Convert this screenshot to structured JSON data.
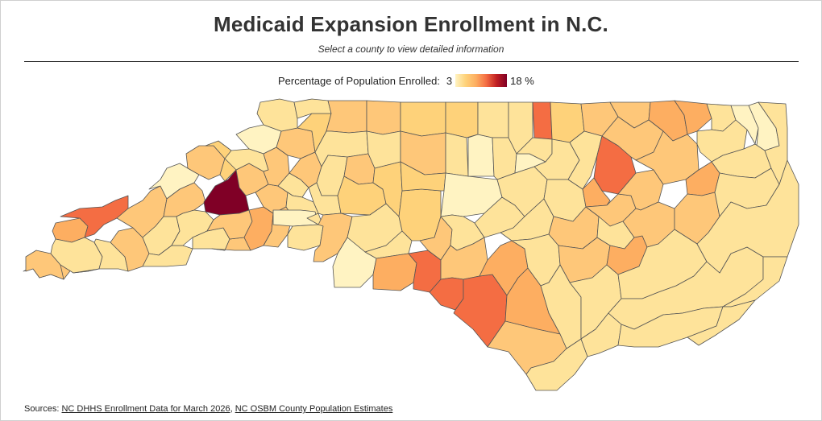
{
  "title": "Medicaid Expansion Enrollment in N.C.",
  "subtitle": "Select a county to view detailed information",
  "legend": {
    "label": "Percentage of Population Enrolled:",
    "min_label": "3",
    "max_label": "18 %",
    "min": 3,
    "max": 18,
    "colors": [
      "#fff3c2",
      "#fed27a",
      "#fdae61",
      "#f46d43",
      "#c01f22",
      "#800026"
    ]
  },
  "sources": {
    "prefix": "Sources:",
    "link1": "NC DHHS Enrollment Data for March 2026",
    "separator": ",",
    "link2": "NC OSBM County Population Estimates"
  }
}
